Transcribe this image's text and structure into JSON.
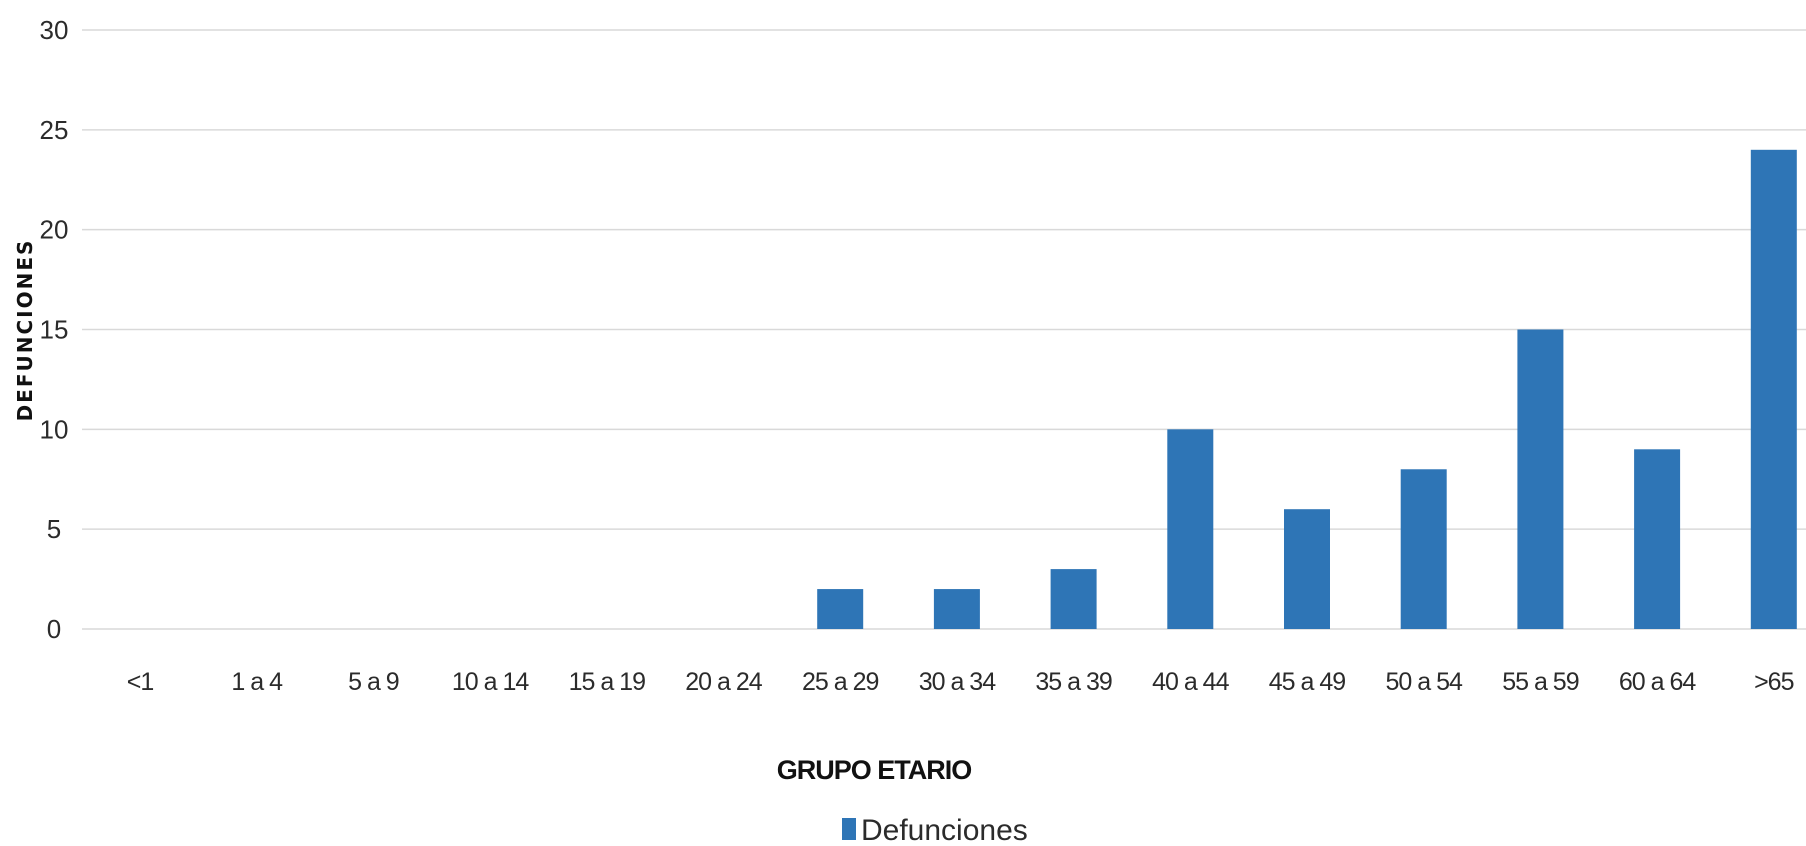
{
  "chart_data": {
    "type": "bar",
    "xlabel": "GRUPO ETARIO",
    "ylabel": "DEFUNCIONES",
    "ylim": [
      0,
      30
    ],
    "yticks": [
      0,
      5,
      10,
      15,
      20,
      25,
      30
    ],
    "grid": true,
    "legend_placement": "bottom-center",
    "categories": [
      "<1",
      "1 a 4",
      "5 a 9",
      "10 a 14",
      "15 a 19",
      "20 a 24",
      "25 a 29",
      "30 a 34",
      "35 a 39",
      "40 a 44",
      "45 a 49",
      "50 a 54",
      "55 a 59",
      "60 a 64",
      ">65"
    ],
    "series": [
      {
        "name": "Defunciones",
        "color": "#2e75b6",
        "values": [
          0,
          0,
          0,
          0,
          0,
          0,
          2,
          2,
          3,
          10,
          6,
          8,
          15,
          9,
          24
        ]
      }
    ]
  }
}
